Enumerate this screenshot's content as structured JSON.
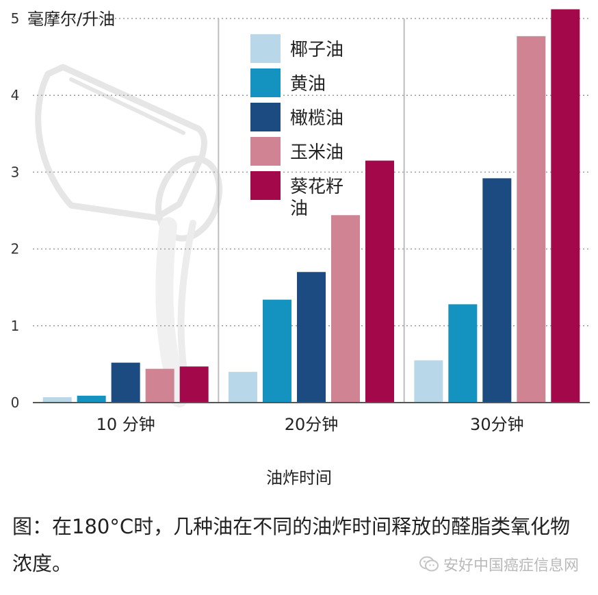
{
  "chart_data": {
    "type": "bar",
    "ylabel": "毫摩尔/升油",
    "xlabel": "油炸时间",
    "categories": [
      "10 分钟",
      "20分钟",
      "30分钟"
    ],
    "ylim": [
      0,
      5
    ],
    "yticks": [
      0,
      1,
      2,
      3,
      4,
      5
    ],
    "grid": "horizontal dotted",
    "legend_position": "top-center",
    "series": [
      {
        "name": "椰子油",
        "color": "#b8d8ea",
        "values": [
          0.07,
          0.4,
          0.55
        ]
      },
      {
        "name": "黄油",
        "color": "#1493c0",
        "values": [
          0.09,
          1.34,
          1.28
        ]
      },
      {
        "name": "橄榄油",
        "color": "#1b4b80",
        "values": [
          0.52,
          1.7,
          2.92
        ]
      },
      {
        "name": "玉米油",
        "color": "#d08493",
        "values": [
          0.44,
          2.44,
          4.77
        ]
      },
      {
        "name": "葵花籽油",
        "color": "#a3084a",
        "values": [
          0.47,
          3.15,
          5.12
        ]
      }
    ]
  },
  "caption": "图：在180°C时，几种油在不同的油炸时间释放的醛脂类氧化物浓度。",
  "watermark": "安好中国癌症信息网",
  "watermark_icon": "wechat-icon"
}
